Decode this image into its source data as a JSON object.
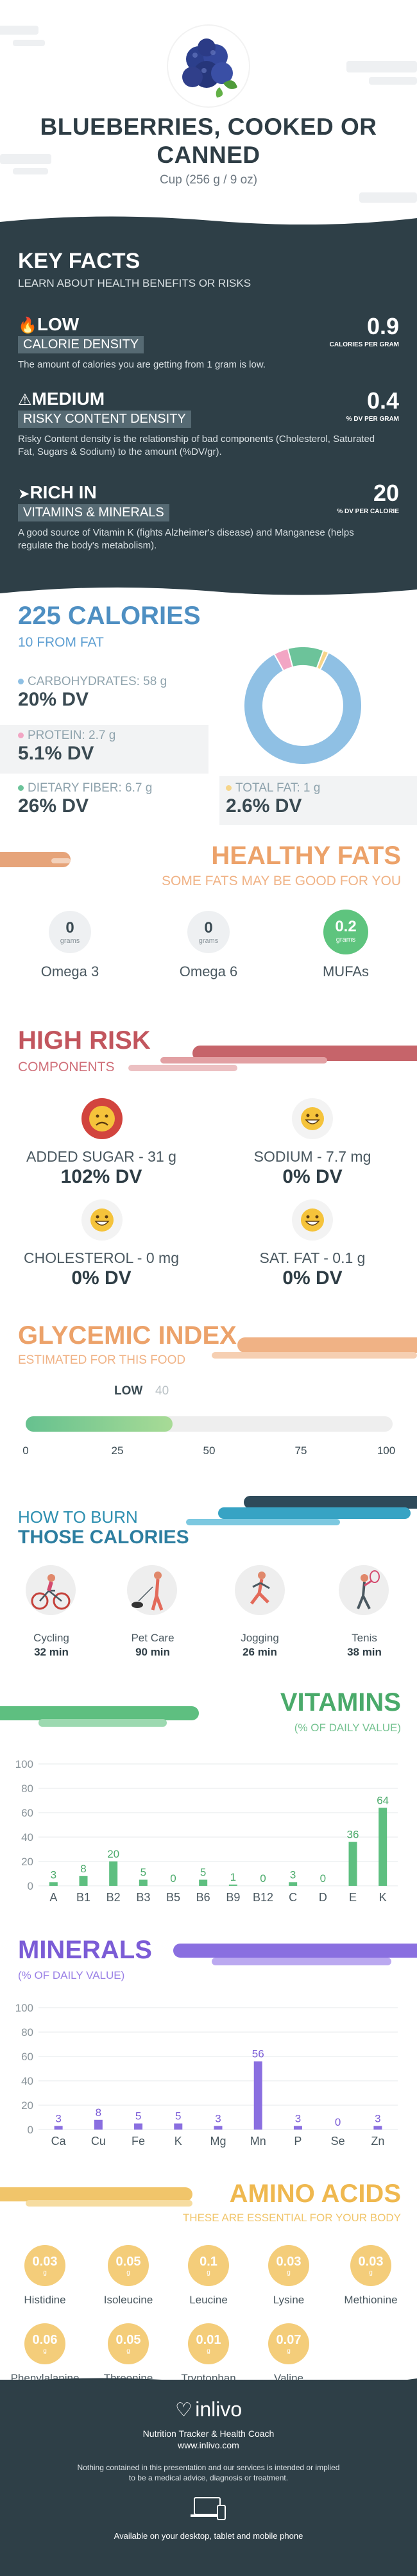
{
  "header": {
    "title_line1": "BLUEBERRIES, COOKED OR",
    "title_line2": "CANNED",
    "serving": "Cup (256 g / 9 oz)"
  },
  "key_facts": {
    "title": "KEY FACTS",
    "subtitle": "LEARN ABOUT HEALTH BENEFITS OR RISKS",
    "items": [
      {
        "level": "LOW",
        "label": "CALORIE DENSITY",
        "desc": "The amount of calories you are getting from 1 gram is low.",
        "value": "0.9",
        "unit": "CALORIES PER GRAM"
      },
      {
        "level": "MEDIUM",
        "label": "RISKY CONTENT DENSITY",
        "desc": "Risky Content density is the relationship of bad components (Cholesterol, Saturated Fat, Sugars & Sodium) to the amount (%DV/gr).",
        "value": "0.4",
        "unit": "% DV PER GRAM"
      },
      {
        "level": "RICH  IN",
        "label": "VITAMINS & MINERALS",
        "desc": "A good source of Vitamin K (fights Alzheimer's disease) and Manganese (helps regulate the body's metabolism).",
        "value": "20",
        "unit": "% DV PER CALORIE"
      }
    ]
  },
  "calories": {
    "title": "225 CALORIES",
    "subtitle": "10 FROM FAT",
    "carbs_label": "CARBOHYDRATES: 58 g",
    "carbs_dv": "20% DV",
    "protein_label": "PROTEIN: 2.7 g",
    "protein_dv": "5.1% DV",
    "fiber_label": "DIETARY FIBER: 6.7 g",
    "fiber_dv": "26% DV",
    "fat_label": "TOTAL FAT: 1 g",
    "fat_dv": "2.6% DV",
    "colors": {
      "carbs": "#8fc0e4",
      "protein": "#f2a6c4",
      "fiber": "#6cc39a",
      "fat": "#f6d58a"
    }
  },
  "healthy_fats": {
    "title": "HEALTHY FATS",
    "subtitle": "SOME FATS MAY BE GOOD FOR YOU",
    "items": [
      {
        "value": "0",
        "unit": "grams",
        "name": "Omega 3"
      },
      {
        "value": "0",
        "unit": "grams",
        "name": "Omega 6"
      },
      {
        "value": "0.2",
        "unit": "grams",
        "name": "MUFAs"
      }
    ]
  },
  "high_risk": {
    "title": "HIGH RISK",
    "subtitle": "COMPONENTS",
    "items": [
      {
        "label": "ADDED SUGAR - 31 g",
        "dv": "102% DV"
      },
      {
        "label": "SODIUM - 7.7 mg",
        "dv": "0% DV"
      },
      {
        "label": "CHOLESTEROL - 0 mg",
        "dv": "0% DV"
      },
      {
        "label": "SAT. FAT - 0.1 g",
        "dv": "0% DV"
      }
    ]
  },
  "glycemic": {
    "title": "GLYCEMIC INDEX",
    "subtitle": "ESTIMATED FOR THIS FOOD",
    "level": "LOW",
    "value": "40",
    "value_num": 40,
    "ticks": [
      "0",
      "25",
      "50",
      "75",
      "100"
    ]
  },
  "burn": {
    "title1": "HOW TO BURN",
    "title2": "THOSE CALORIES",
    "items": [
      {
        "name": "Cycling",
        "minutes": "32 min"
      },
      {
        "name": "Pet Care",
        "minutes": "90 min"
      },
      {
        "name": "Jogging",
        "minutes": "26 min"
      },
      {
        "name": "Tenis",
        "minutes": "38 min"
      }
    ]
  },
  "vitamins": {
    "title": "VITAMINS",
    "subtitle": "(% OF DAILY VALUE)"
  },
  "minerals": {
    "title": "MINERALS",
    "subtitle": "(% OF DAILY VALUE)"
  },
  "chart_data": [
    {
      "type": "bar",
      "title": "VITAMINS",
      "subtitle": "(% OF DAILY VALUE)",
      "categories": [
        "A",
        "B1",
        "B2",
        "B3",
        "B5",
        "B6",
        "B9",
        "B12",
        "C",
        "D",
        "E",
        "K"
      ],
      "values": [
        3,
        8,
        20,
        5,
        0,
        5,
        1,
        0,
        3,
        0,
        36,
        64
      ],
      "ylim": [
        0,
        100
      ],
      "yticks": [
        0,
        20,
        40,
        60,
        80,
        100
      ],
      "color": "#5ebf80",
      "grid": true
    },
    {
      "type": "bar",
      "title": "MINERALS",
      "subtitle": "(% OF DAILY VALUE)",
      "categories": [
        "Ca",
        "Cu",
        "Fe",
        "K",
        "Mg",
        "Mn",
        "P",
        "Se",
        "Zn"
      ],
      "values": [
        3,
        8,
        5,
        5,
        3,
        56,
        3,
        0,
        3
      ],
      "ylim": [
        0,
        100
      ],
      "yticks": [
        0,
        20,
        40,
        60,
        80,
        100
      ],
      "color": "#8a6fe0",
      "grid": true
    },
    {
      "type": "pie",
      "title": "225 CALORIES",
      "categories": [
        "Carbohydrates",
        "Protein",
        "Dietary Fiber",
        "Total Fat"
      ],
      "values": [
        58,
        2.7,
        6.7,
        1
      ]
    }
  ],
  "amino": {
    "title": "AMINO ACIDS",
    "subtitle": "THESE ARE ESSENTIAL FOR YOUR BODY",
    "unit": "g",
    "items": [
      {
        "value": "0.03",
        "name": "Histidine"
      },
      {
        "value": "0.05",
        "name": "Isoleucine"
      },
      {
        "value": "0.1",
        "name": "Leucine"
      },
      {
        "value": "0.03",
        "name": "Lysine"
      },
      {
        "value": "0.03",
        "name": "Methionine"
      },
      {
        "value": "0.06",
        "name": "Phenylalanine"
      },
      {
        "value": "0.05",
        "name": "Threonine"
      },
      {
        "value": "0.01",
        "name": "Tryptophan"
      },
      {
        "value": "0.07",
        "name": "Valine"
      }
    ]
  },
  "footer": {
    "brand": "inlivo",
    "tagline": "Nutrition Tracker & Health Coach",
    "url": "www.inlivo.com",
    "disclaimer1": "Nothing contained in this presentation and our services is intended or implied",
    "disclaimer2": "to be a medical advice, diagnosis or treatment.",
    "available": "Available on your desktop, tablet and mobile phone"
  }
}
